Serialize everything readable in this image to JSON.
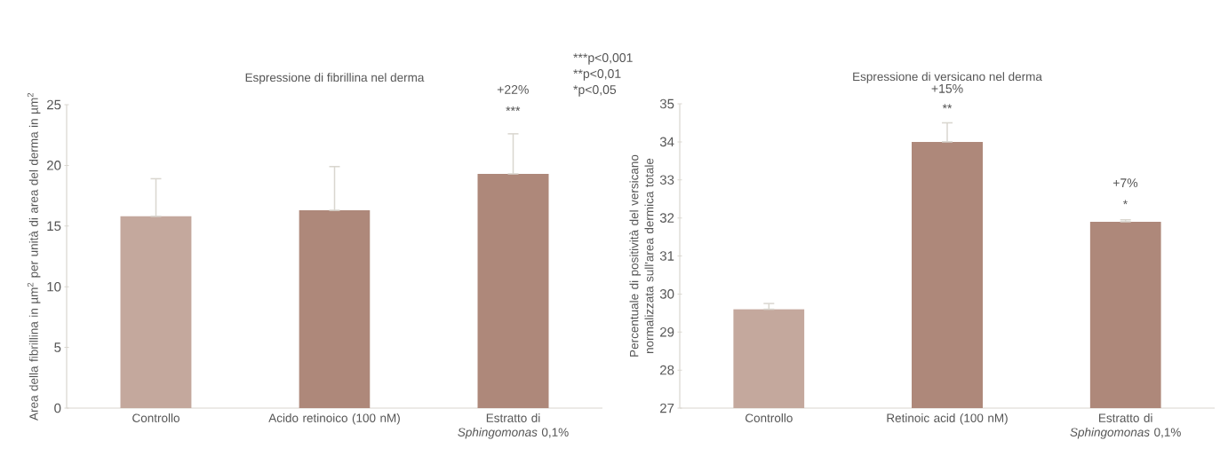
{
  "chart_data": [
    {
      "type": "bar",
      "title": "Espressione di fibrillina nel derma",
      "ylabel": "Area della fibrillina in µm$^{2}$ per unità di area del derma in µm$^{2}$",
      "categories": [
        "Controllo",
        "Acido retinoico (100 nM)",
        "Estratto di *Sphingomonas* 0,1%"
      ],
      "values": [
        15.8,
        16.3,
        19.3
      ],
      "colors": [
        "#c4a89d",
        "#ae887a",
        "#ae887a"
      ],
      "errors": [
        [
          15.8,
          18.9
        ],
        [
          16.3,
          19.9
        ],
        [
          19.3,
          22.6
        ]
      ],
      "ylim": [
        0,
        25
      ],
      "yticks": [
        0,
        5,
        10,
        15,
        20,
        25
      ],
      "annotations": [
        "+22%",
        "***",
        "***p<0,001",
        "**p<0,01",
        "*p<0,05"
      ]
    },
    {
      "type": "bar",
      "title": "Espressione di versicano nel derma",
      "ylabel": "Percentuale di positività del versicano normalizzata sull'area dermica totale",
      "categories": [
        "Controllo",
        "Retinoic acid (100 nM)",
        "Estratto di *Sphingomonas* 0,1%"
      ],
      "values": [
        29.6,
        34.0,
        31.9
      ],
      "colors": [
        "#c4a89d",
        "#ae887a",
        "#ae887a"
      ],
      "errors": [
        [
          29.6,
          29.75
        ],
        [
          34.0,
          34.5
        ],
        [
          31.9,
          31.95
        ]
      ],
      "ylim": [
        27,
        35
      ],
      "yticks": [
        27,
        28,
        29,
        30,
        31,
        32,
        33,
        34,
        35
      ],
      "annotations": [
        "+15%",
        "**",
        "+7%",
        "*"
      ]
    }
  ]
}
